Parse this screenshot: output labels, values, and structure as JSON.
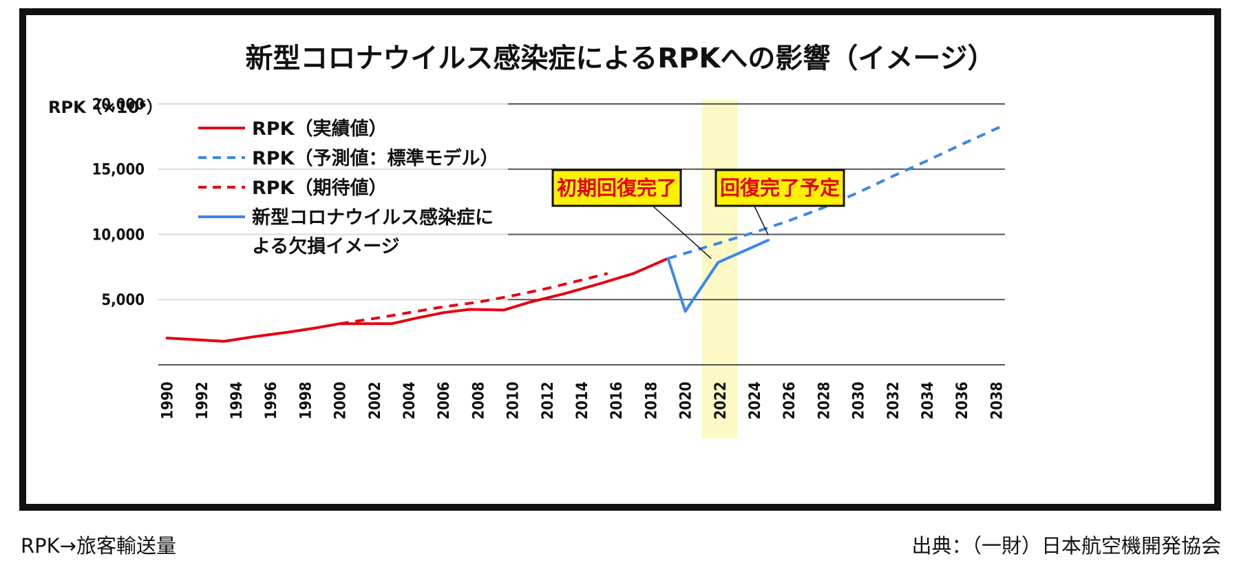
{
  "chart_data": {
    "type": "line",
    "title": "新型コロナウイルス感染症によるRPKへの影響（イメージ）",
    "ylabel": "RPK（×10⁶）",
    "yticks": [
      {
        "value": 5000,
        "label": "5,000"
      },
      {
        "value": 10000,
        "label": "10,000"
      },
      {
        "value": 15000,
        "label": "15,000"
      },
      {
        "value": 20000,
        "label": "20,000"
      }
    ],
    "ylim": [
      0,
      21000
    ],
    "xticks": [
      "1990",
      "1992",
      "1994",
      "1996",
      "1998",
      "2000",
      "2002",
      "2004",
      "2006",
      "2008",
      "2010",
      "2012",
      "2014",
      "2016",
      "2018",
      "2020",
      "2022",
      "2024",
      "2026",
      "2028",
      "2030",
      "2032",
      "2034",
      "2036",
      "2038"
    ],
    "xlim": [
      1989.5,
      2038.5
    ],
    "highlight": {
      "year": 2022,
      "color": "#fdf9c4",
      "tick_color": "#e60012"
    },
    "grid": true,
    "legend_position": "top-left",
    "series": [
      {
        "name": "RPK（実績値）",
        "style": "solid",
        "color": "#e60012",
        "x": [
          1990,
          1992,
          1993.3,
          1995,
          1997,
          1998.5,
          2000,
          2002,
          2003,
          2004.5,
          2006,
          2007.5,
          2009.5,
          2011,
          2013,
          2015,
          2017,
          2018.9
        ],
        "y": [
          2050,
          1900,
          1800,
          2150,
          2500,
          2800,
          3150,
          3150,
          3150,
          3600,
          4000,
          4250,
          4200,
          4800,
          5450,
          6200,
          7000,
          8100
        ]
      },
      {
        "name": "RPK（予測値：標準モデル）",
        "style": "dashed",
        "color": "#3a87e8",
        "x": [
          2019,
          2020,
          2022,
          2024,
          2026,
          2028,
          2030,
          2032,
          2034,
          2036,
          2038.5
        ],
        "y": [
          8150,
          8550,
          9350,
          10150,
          11050,
          12050,
          13200,
          14450,
          15650,
          16900,
          18400
        ]
      },
      {
        "name": "RPK（期待値）",
        "style": "dashed",
        "color": "#e60012",
        "x": [
          2000,
          2002,
          2004,
          2006,
          2008,
          2010,
          2012,
          2014,
          2015.5
        ],
        "y": [
          3150,
          3550,
          4000,
          4450,
          4800,
          5300,
          5850,
          6500,
          7000
        ]
      },
      {
        "name": "新型コロナウイルス感染症による欠損イメージ",
        "style": "solid",
        "color": "#3a87e8",
        "x": [
          2019,
          2020,
          2021.9,
          2024.8
        ],
        "y": [
          8150,
          4100,
          7850,
          9550
        ]
      }
    ],
    "annotations": [
      {
        "text": "初期回復完了",
        "target_x": 2021.5,
        "target_y": 8150
      },
      {
        "text": "回復完了予定",
        "target_x": 2024.8,
        "target_y": 9950
      }
    ]
  },
  "footnotes": {
    "left": "RPK→旅客輸送量",
    "right": "出典：（一財）日本航空機開発協会"
  }
}
